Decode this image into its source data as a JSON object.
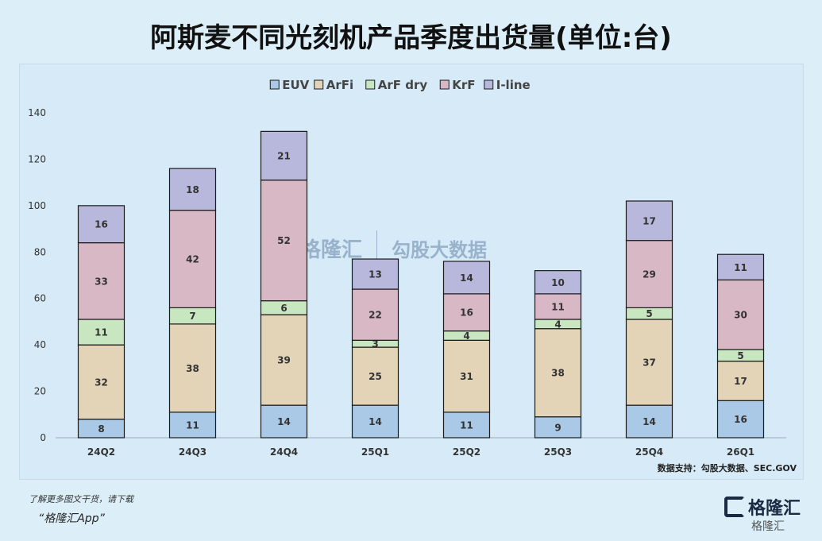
{
  "page": {
    "title": "阿斯麦不同光刻机产品季度出货量(单位:台)",
    "source": "数据支持：勾股大数据、SEC.GOV",
    "footer_note": "了解更多图文干货，请下载",
    "footer_app": "“格隆汇App”",
    "logo_text": "格隆汇",
    "logo_sub": "格隆汇",
    "watermark_left": "格隆汇",
    "watermark_right": "勾股大数据"
  },
  "chart_data": {
    "type": "bar",
    "stacked": true,
    "title": "阿斯麦不同光刻机产品季度出货量(单位:台)",
    "categories": [
      "24Q2",
      "24Q3",
      "24Q4",
      "25Q1",
      "25Q2",
      "25Q3",
      "25Q4",
      "26Q1"
    ],
    "ylim": [
      0,
      140
    ],
    "yticks": [
      0,
      20,
      40,
      60,
      80,
      100,
      120,
      140
    ],
    "legend_position": "top",
    "series": [
      {
        "name": "EUV",
        "color": "#a9c9e6",
        "values": [
          8,
          11,
          14,
          14,
          11,
          9,
          14,
          16
        ]
      },
      {
        "name": "ArFi",
        "color": "#e3d4b8",
        "values": [
          32,
          38,
          39,
          25,
          31,
          38,
          37,
          17
        ]
      },
      {
        "name": "ArF dry",
        "color": "#c8e6c0",
        "values": [
          11,
          7,
          6,
          3,
          4,
          4,
          5,
          5
        ]
      },
      {
        "name": "KrF",
        "color": "#d9b8c6",
        "values": [
          33,
          42,
          52,
          22,
          16,
          11,
          29,
          30
        ]
      },
      {
        "name": "I-line",
        "color": "#b8b8dc",
        "values": [
          16,
          18,
          21,
          13,
          14,
          10,
          17,
          11
        ]
      }
    ]
  }
}
